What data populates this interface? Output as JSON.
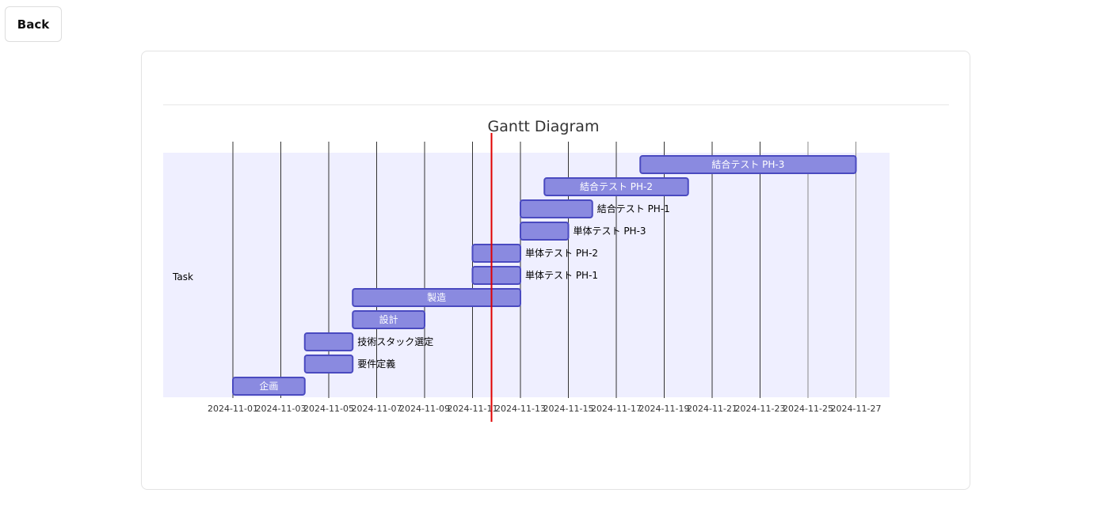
{
  "nav": {
    "back_label": "Back"
  },
  "chart_data": {
    "type": "gantt",
    "title": "Gantt Diagram",
    "section": "Task",
    "x_ticks": [
      "2024-11-01",
      "2024-11-03",
      "2024-11-05",
      "2024-11-07",
      "2024-11-09",
      "2024-11-11",
      "2024-11-13",
      "2024-11-15",
      "2024-11-17",
      "2024-11-19",
      "2024-11-21",
      "2024-11-23",
      "2024-11-25",
      "2024-11-27"
    ],
    "today": "2024-11-11",
    "today_color": "#e00000",
    "bar_color": "#8a8ae0",
    "bar_border_color": "#4a4ac0",
    "section_bg_color": "#efefff",
    "tasks": [
      {
        "name": "企画",
        "start": "2024-11-01",
        "end": "2024-11-04"
      },
      {
        "name": "要件定義",
        "start": "2024-11-04",
        "end": "2024-11-06"
      },
      {
        "name": "技術スタック選定",
        "start": "2024-11-04",
        "end": "2024-11-06"
      },
      {
        "name": "設計",
        "start": "2024-11-06",
        "end": "2024-11-09"
      },
      {
        "name": "製造",
        "start": "2024-11-06",
        "end": "2024-11-13"
      },
      {
        "name": "単体テスト PH-1",
        "start": "2024-11-11",
        "end": "2024-11-13"
      },
      {
        "name": "単体テスト PH-2",
        "start": "2024-11-11",
        "end": "2024-11-13"
      },
      {
        "name": "単体テスト PH-3",
        "start": "2024-11-13",
        "end": "2024-11-15"
      },
      {
        "name": "結合テスト PH-1",
        "start": "2024-11-13",
        "end": "2024-11-16"
      },
      {
        "name": "結合テスト PH-2",
        "start": "2024-11-14",
        "end": "2024-11-20"
      },
      {
        "name": "結合テスト PH-3",
        "start": "2024-11-18",
        "end": "2024-11-27"
      }
    ]
  }
}
